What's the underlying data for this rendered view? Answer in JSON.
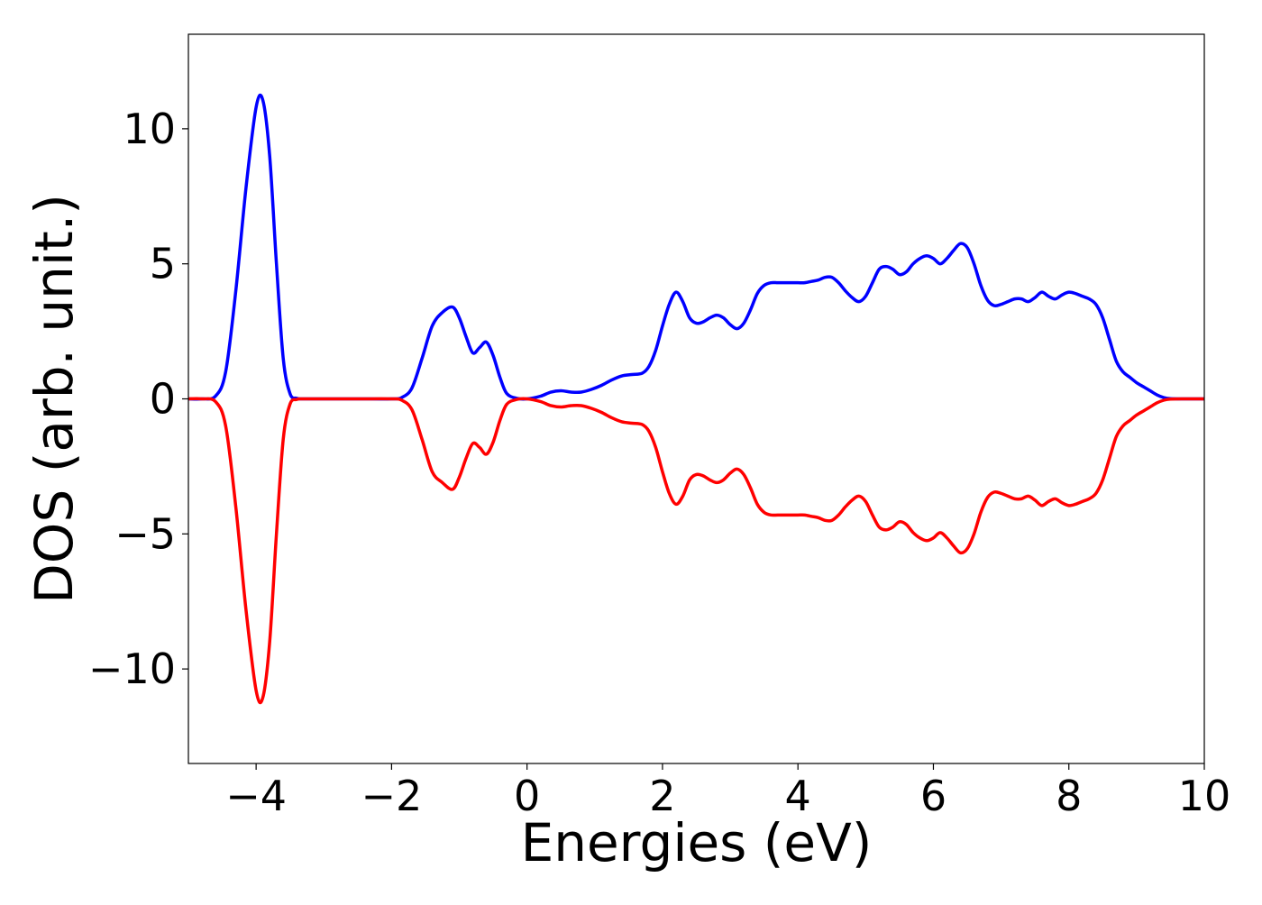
{
  "chart_data": {
    "type": "line",
    "xlabel": "Energies (eV)",
    "ylabel": "DOS (arb. unit.)",
    "xlim": [
      -5,
      10
    ],
    "ylim": [
      -13.5,
      13.5
    ],
    "x_ticks": [
      -4,
      -2,
      0,
      2,
      4,
      6,
      8,
      10
    ],
    "y_ticks": [
      -10,
      -5,
      0,
      5,
      10
    ],
    "x_tick_labels": [
      "−4",
      "−2",
      "0",
      "2",
      "4",
      "6",
      "8",
      "10"
    ],
    "y_tick_labels": [
      "−10",
      "−5",
      "0",
      "5",
      "10"
    ],
    "grid": false,
    "series": [
      {
        "color": "#0000ff",
        "x": [
          -5.0,
          -4.8,
          -4.6,
          -4.45,
          -4.3,
          -4.15,
          -4.0,
          -3.9,
          -3.8,
          -3.7,
          -3.6,
          -3.5,
          -3.4,
          -3.3,
          -3.0,
          -2.5,
          -2.0,
          -1.85,
          -1.7,
          -1.55,
          -1.4,
          -1.25,
          -1.1,
          -1.0,
          -0.9,
          -0.8,
          -0.7,
          -0.6,
          -0.5,
          -0.4,
          -0.3,
          -0.15,
          0.0,
          0.2,
          0.35,
          0.5,
          0.65,
          0.8,
          0.95,
          1.1,
          1.25,
          1.4,
          1.55,
          1.7,
          1.8,
          1.9,
          2.0,
          2.1,
          2.2,
          2.3,
          2.4,
          2.5,
          2.6,
          2.7,
          2.8,
          2.9,
          3.0,
          3.1,
          3.2,
          3.3,
          3.4,
          3.5,
          3.6,
          3.7,
          3.8,
          3.9,
          4.0,
          4.1,
          4.2,
          4.3,
          4.4,
          4.5,
          4.6,
          4.7,
          4.8,
          4.9,
          5.0,
          5.1,
          5.2,
          5.3,
          5.4,
          5.5,
          5.6,
          5.7,
          5.8,
          5.9,
          6.0,
          6.1,
          6.2,
          6.3,
          6.4,
          6.5,
          6.6,
          6.7,
          6.8,
          6.9,
          7.0,
          7.1,
          7.2,
          7.3,
          7.4,
          7.5,
          7.6,
          7.7,
          7.8,
          7.9,
          8.0,
          8.1,
          8.2,
          8.3,
          8.4,
          8.5,
          8.6,
          8.7,
          8.8,
          8.9,
          9.0,
          9.1,
          9.2,
          9.3,
          9.4,
          9.5,
          9.7,
          10.0
        ],
        "values": [
          0,
          0,
          0.1,
          1.0,
          4.0,
          7.8,
          10.8,
          11.05,
          9.0,
          5.0,
          1.5,
          0.2,
          0.02,
          0,
          0,
          0,
          0,
          0.05,
          0.4,
          1.5,
          2.7,
          3.2,
          3.4,
          3.0,
          2.3,
          1.7,
          1.9,
          2.1,
          1.6,
          0.8,
          0.2,
          0.02,
          0.0,
          0.1,
          0.25,
          0.3,
          0.25,
          0.25,
          0.35,
          0.5,
          0.7,
          0.85,
          0.9,
          0.95,
          1.2,
          1.8,
          2.7,
          3.5,
          3.95,
          3.6,
          3.0,
          2.8,
          2.85,
          3.0,
          3.1,
          3.0,
          2.75,
          2.6,
          2.8,
          3.3,
          3.9,
          4.2,
          4.3,
          4.3,
          4.3,
          4.3,
          4.3,
          4.3,
          4.35,
          4.4,
          4.5,
          4.5,
          4.3,
          4.0,
          3.75,
          3.6,
          3.8,
          4.3,
          4.8,
          4.9,
          4.8,
          4.6,
          4.7,
          5.0,
          5.2,
          5.3,
          5.2,
          5.0,
          5.2,
          5.5,
          5.75,
          5.6,
          5.0,
          4.2,
          3.65,
          3.45,
          3.5,
          3.6,
          3.7,
          3.7,
          3.6,
          3.75,
          3.95,
          3.8,
          3.7,
          3.85,
          3.95,
          3.9,
          3.8,
          3.7,
          3.5,
          3.0,
          2.2,
          1.4,
          1.0,
          0.8,
          0.6,
          0.45,
          0.3,
          0.15,
          0.05,
          0.01,
          0,
          0
        ]
      },
      {
        "color": "#ff0000",
        "x": [
          -5.0,
          -4.8,
          -4.6,
          -4.45,
          -4.3,
          -4.15,
          -4.0,
          -3.9,
          -3.8,
          -3.7,
          -3.6,
          -3.5,
          -3.4,
          -3.3,
          -3.0,
          -2.5,
          -2.0,
          -1.85,
          -1.7,
          -1.55,
          -1.4,
          -1.25,
          -1.1,
          -1.0,
          -0.9,
          -0.8,
          -0.7,
          -0.6,
          -0.5,
          -0.4,
          -0.3,
          -0.15,
          0.0,
          0.2,
          0.35,
          0.5,
          0.65,
          0.8,
          0.95,
          1.1,
          1.25,
          1.4,
          1.55,
          1.7,
          1.8,
          1.9,
          2.0,
          2.1,
          2.2,
          2.3,
          2.4,
          2.5,
          2.6,
          2.7,
          2.8,
          2.9,
          3.0,
          3.1,
          3.2,
          3.3,
          3.4,
          3.5,
          3.6,
          3.7,
          3.8,
          3.9,
          4.0,
          4.1,
          4.2,
          4.3,
          4.4,
          4.5,
          4.6,
          4.7,
          4.8,
          4.9,
          5.0,
          5.1,
          5.2,
          5.3,
          5.4,
          5.5,
          5.6,
          5.7,
          5.8,
          5.9,
          6.0,
          6.1,
          6.2,
          6.3,
          6.4,
          6.5,
          6.6,
          6.7,
          6.8,
          6.9,
          7.0,
          7.1,
          7.2,
          7.3,
          7.4,
          7.5,
          7.6,
          7.7,
          7.8,
          7.9,
          8.0,
          8.1,
          8.2,
          8.3,
          8.4,
          8.5,
          8.6,
          8.7,
          8.8,
          8.9,
          9.0,
          9.1,
          9.2,
          9.3,
          9.4,
          9.5,
          9.7,
          10.0
        ],
        "values": [
          0,
          0,
          -0.1,
          -1.0,
          -4.0,
          -7.8,
          -10.8,
          -11.05,
          -9.0,
          -5.0,
          -1.5,
          -0.2,
          -0.02,
          0,
          0,
          0,
          0,
          -0.05,
          -0.4,
          -1.5,
          -2.7,
          -3.1,
          -3.35,
          -2.9,
          -2.2,
          -1.65,
          -1.8,
          -2.05,
          -1.6,
          -0.8,
          -0.2,
          -0.02,
          0.0,
          -0.1,
          -0.25,
          -0.3,
          -0.25,
          -0.25,
          -0.35,
          -0.5,
          -0.7,
          -0.85,
          -0.9,
          -0.95,
          -1.2,
          -1.8,
          -2.7,
          -3.5,
          -3.9,
          -3.6,
          -3.0,
          -2.8,
          -2.85,
          -3.0,
          -3.1,
          -3.0,
          -2.75,
          -2.6,
          -2.8,
          -3.3,
          -3.9,
          -4.2,
          -4.3,
          -4.3,
          -4.3,
          -4.3,
          -4.3,
          -4.3,
          -4.35,
          -4.4,
          -4.5,
          -4.5,
          -4.3,
          -4.0,
          -3.75,
          -3.6,
          -3.8,
          -4.3,
          -4.75,
          -4.85,
          -4.75,
          -4.55,
          -4.65,
          -4.95,
          -5.15,
          -5.25,
          -5.15,
          -4.95,
          -5.15,
          -5.45,
          -5.7,
          -5.55,
          -5.0,
          -4.2,
          -3.65,
          -3.45,
          -3.5,
          -3.6,
          -3.7,
          -3.7,
          -3.6,
          -3.75,
          -3.95,
          -3.8,
          -3.7,
          -3.85,
          -3.95,
          -3.9,
          -3.8,
          -3.7,
          -3.5,
          -3.0,
          -2.2,
          -1.4,
          -1.0,
          -0.8,
          -0.6,
          -0.45,
          -0.3,
          -0.15,
          -0.05,
          -0.01,
          0,
          0
        ]
      }
    ]
  }
}
